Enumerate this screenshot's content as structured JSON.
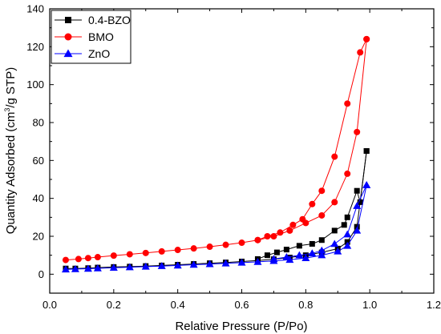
{
  "chart_data": {
    "type": "line",
    "title": "",
    "xlabel": "Relative Pressure (P/Po)",
    "ylabel_parts": [
      "Quantity Adsorbed (cm",
      "3",
      "/g STP)"
    ],
    "xlim": [
      0.0,
      1.2
    ],
    "ylim": [
      -10,
      140
    ],
    "xticks": [
      "0.0",
      "0.2",
      "0.4",
      "0.6",
      "0.8",
      "1.0",
      "1.2"
    ],
    "yticks": [
      "0",
      "20",
      "40",
      "60",
      "80",
      "100",
      "120",
      "140"
    ],
    "grid": false,
    "legend_position": "top-left",
    "series": [
      {
        "name": "0.4-BZO",
        "color": "#000000",
        "marker": "square",
        "adsorption": {
          "x": [
            0.05,
            0.08,
            0.12,
            0.15,
            0.2,
            0.25,
            0.3,
            0.35,
            0.4,
            0.45,
            0.5,
            0.55,
            0.6,
            0.65,
            0.7,
            0.75,
            0.8,
            0.85,
            0.9,
            0.93,
            0.96,
            0.99
          ],
          "y": [
            3,
            3,
            3.2,
            3.5,
            3.8,
            4,
            4.3,
            4.6,
            5,
            5.4,
            5.8,
            6.2,
            6.7,
            7.2,
            7.9,
            8.8,
            10,
            11.5,
            13.5,
            17,
            25,
            65
          ]
        },
        "desorption": {
          "x": [
            0.99,
            0.97,
            0.96,
            0.93,
            0.92,
            0.89,
            0.85,
            0.82,
            0.78,
            0.74,
            0.71,
            0.68,
            0.65
          ],
          "y": [
            65,
            38,
            44,
            30,
            26,
            23,
            18,
            16,
            15,
            13,
            11.5,
            10,
            8
          ]
        }
      },
      {
        "name": "BMO",
        "color": "#ff0000",
        "marker": "circle",
        "adsorption": {
          "x": [
            0.05,
            0.09,
            0.12,
            0.15,
            0.2,
            0.25,
            0.3,
            0.35,
            0.4,
            0.45,
            0.5,
            0.55,
            0.6,
            0.65,
            0.7,
            0.75,
            0.8,
            0.85,
            0.89,
            0.93,
            0.96,
            0.99
          ],
          "y": [
            7.5,
            8,
            8.5,
            9,
            9.8,
            10.5,
            11.2,
            12,
            12.8,
            13.6,
            14.5,
            15.5,
            16.6,
            18,
            20,
            23,
            27,
            31,
            38,
            53,
            75,
            124
          ]
        },
        "desorption": {
          "x": [
            0.99,
            0.97,
            0.93,
            0.89,
            0.85,
            0.82,
            0.79,
            0.76,
            0.72,
            0.68,
            0.65
          ],
          "y": [
            124,
            117,
            90,
            62,
            44,
            37,
            29,
            26,
            22,
            20,
            18
          ]
        }
      },
      {
        "name": "ZnO",
        "color": "#0000ff",
        "marker": "triangle",
        "adsorption": {
          "x": [
            0.05,
            0.08,
            0.12,
            0.15,
            0.2,
            0.25,
            0.3,
            0.35,
            0.4,
            0.45,
            0.5,
            0.55,
            0.6,
            0.65,
            0.7,
            0.75,
            0.8,
            0.85,
            0.9,
            0.93,
            0.96,
            0.99
          ],
          "y": [
            2.5,
            2.7,
            2.9,
            3.1,
            3.4,
            3.7,
            4,
            4.3,
            4.6,
            5,
            5.3,
            5.7,
            6.1,
            6.5,
            7,
            7.6,
            8.5,
            10,
            12,
            15,
            23,
            47
          ]
        },
        "desorption": {
          "x": [
            0.99,
            0.96,
            0.93,
            0.89,
            0.85,
            0.82,
            0.78,
            0.74,
            0.7
          ],
          "y": [
            47,
            36,
            21,
            16,
            12.5,
            11,
            10,
            9,
            8
          ]
        }
      }
    ]
  }
}
